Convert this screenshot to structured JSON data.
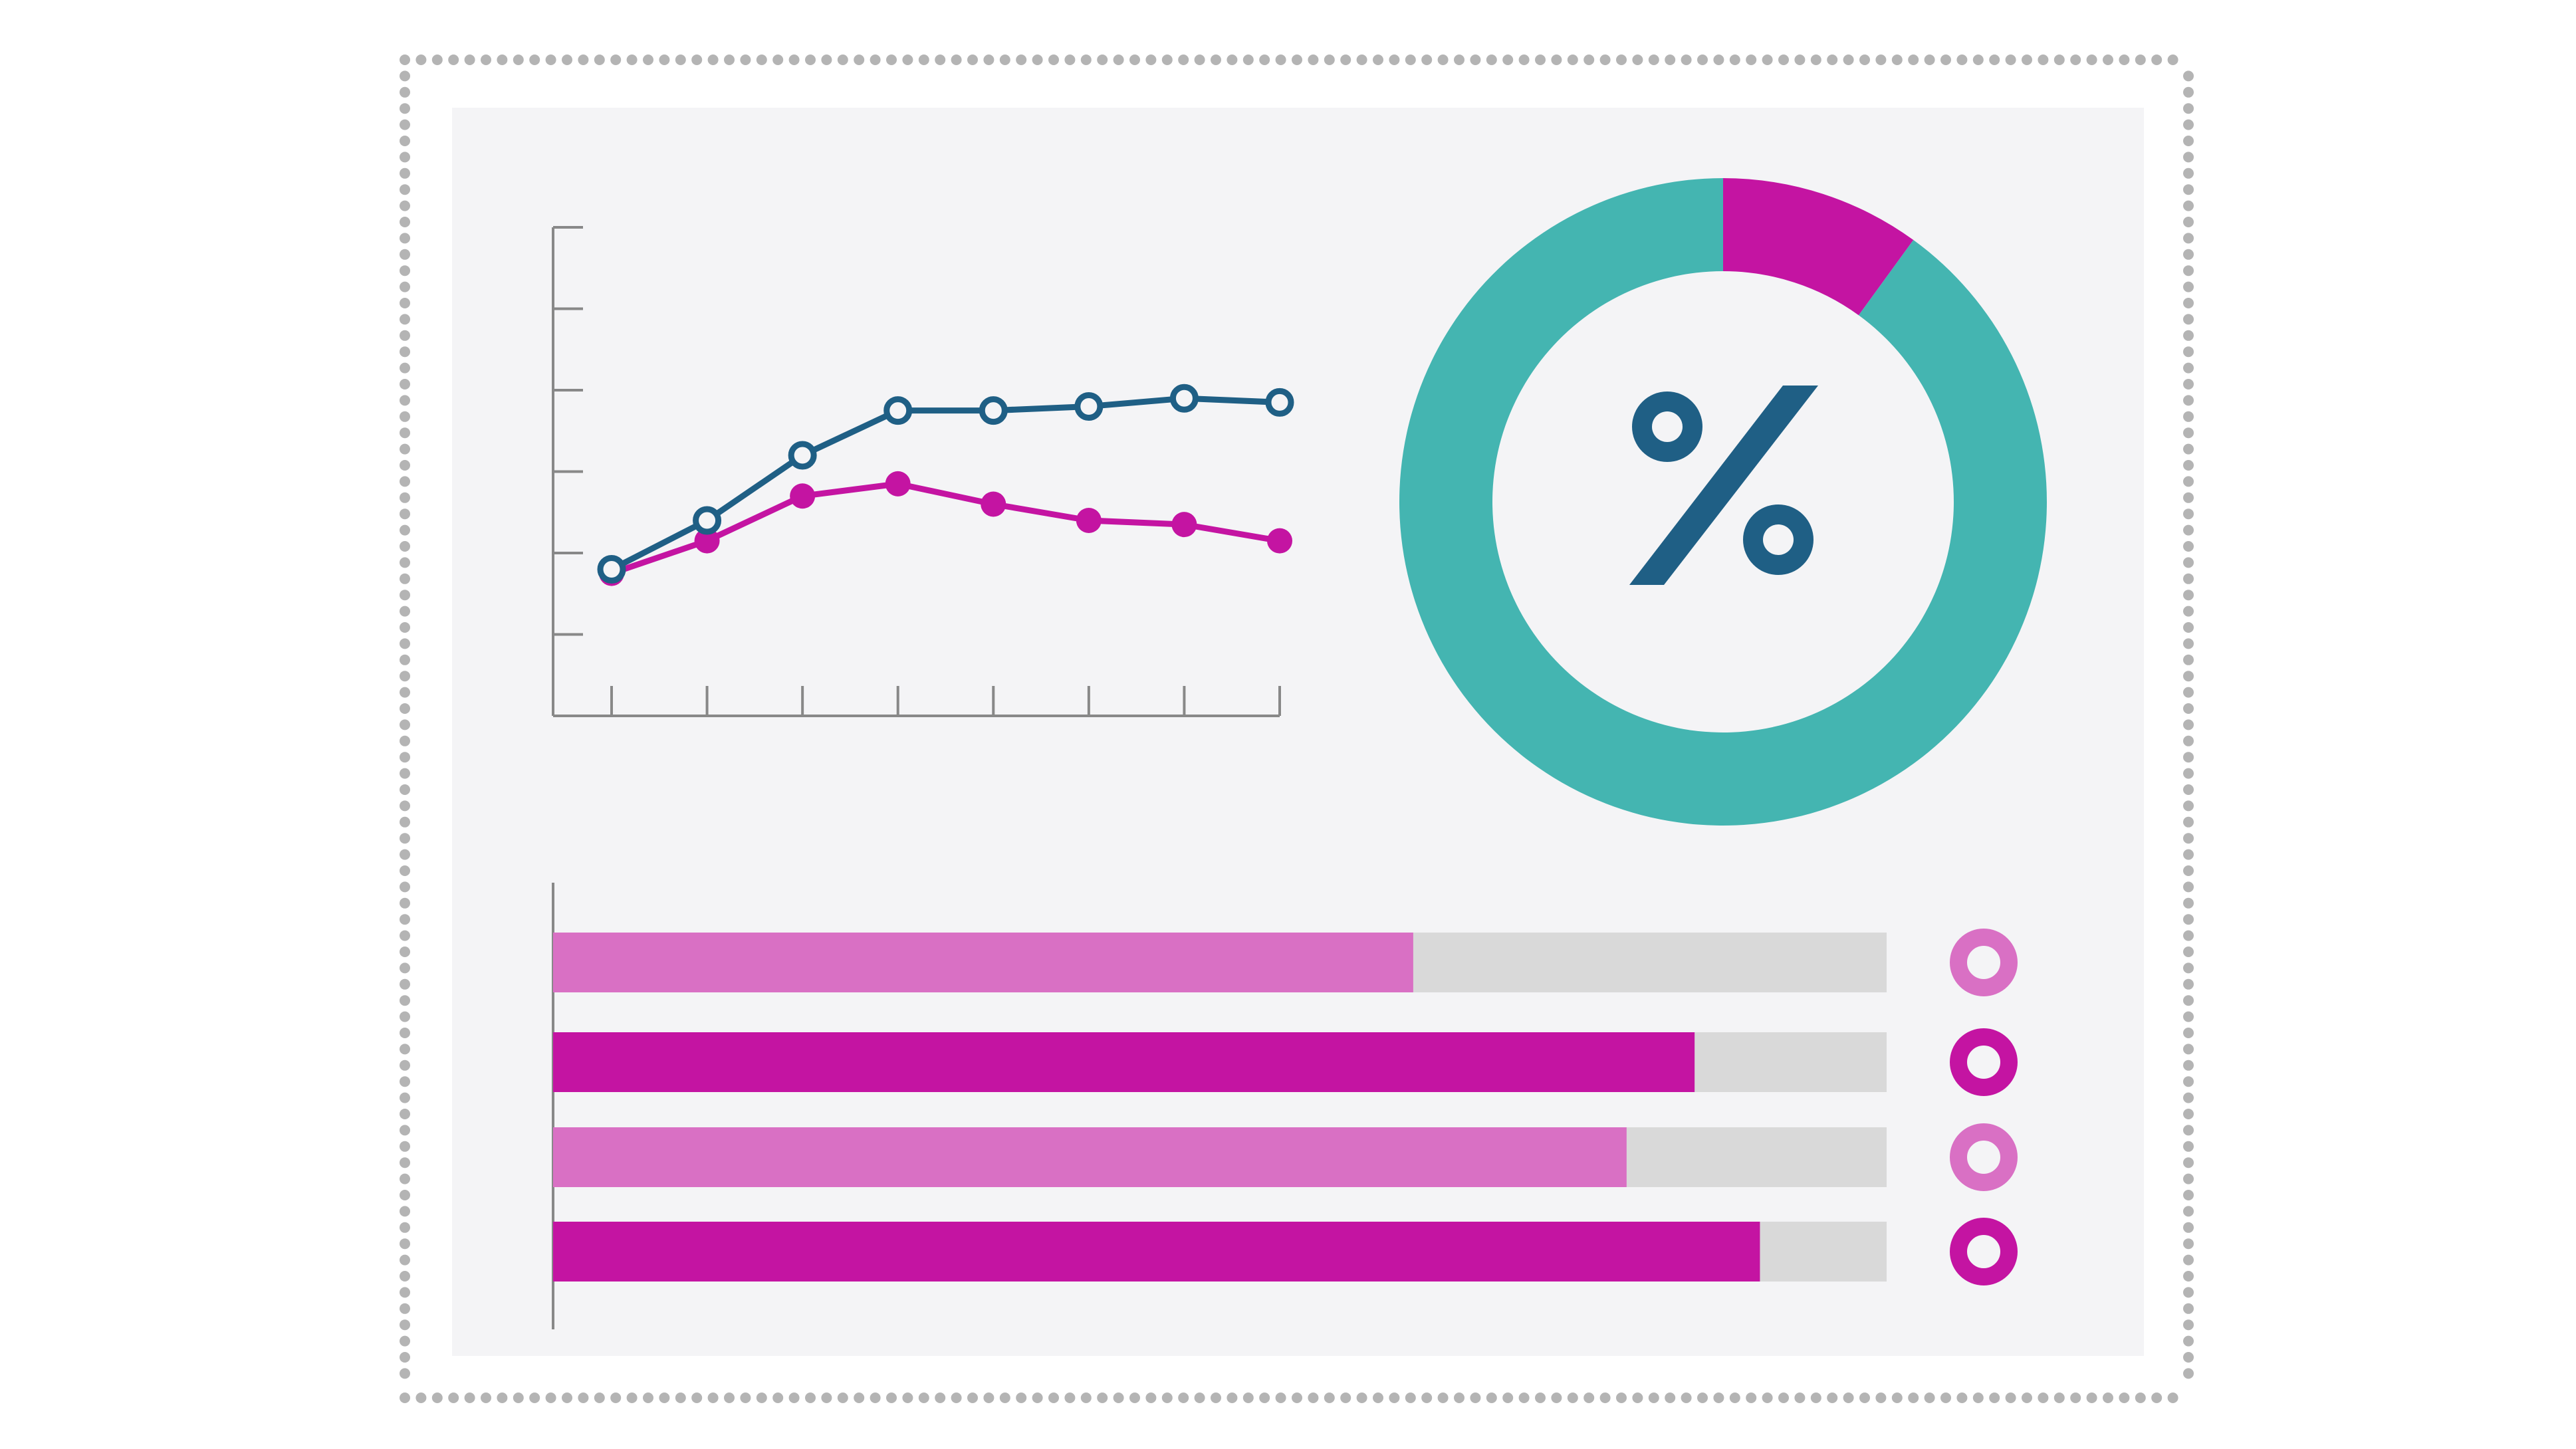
{
  "colors": {
    "page_background": "#ffffff",
    "panel_background": "#f4f4f6",
    "frame_dots": "#b4b4b4",
    "axis": "#888888",
    "navy": "#1f5f85",
    "magenta": "#c414a2",
    "light_magenta": "#d970c4",
    "teal": "#44b5b1",
    "track_gray": "#d9d9d9"
  },
  "icons": {
    "percent_symbol": "percent-icon",
    "legend_markers": "ring-marker-icon"
  },
  "chart_data": [
    {
      "type": "line",
      "title": "",
      "xlabel": "",
      "ylabel": "",
      "x": [
        1,
        2,
        3,
        4,
        5,
        6,
        7,
        8
      ],
      "ylim": [
        0,
        6
      ],
      "y_ticks": [
        1,
        2,
        3,
        4,
        5,
        6
      ],
      "grid": false,
      "series": [
        {
          "color": "#1f5f85",
          "marker": "hollow",
          "values": [
            1.8,
            2.4,
            3.2,
            3.75,
            3.75,
            3.8,
            3.9,
            3.85
          ]
        },
        {
          "color": "#c414a2",
          "marker": "filled",
          "values": [
            1.75,
            2.15,
            2.7,
            2.85,
            2.6,
            2.4,
            2.35,
            2.15
          ]
        }
      ]
    },
    {
      "type": "pie",
      "style": "donut",
      "title": "",
      "center_symbol": "%",
      "slices": [
        {
          "color": "#c414a2",
          "value": 0.1
        },
        {
          "color": "#44b5b1",
          "value": 0.9
        }
      ]
    },
    {
      "type": "bar",
      "orientation": "horizontal",
      "title": "",
      "xlim": [
        0,
        1
      ],
      "bars": [
        {
          "value": 0.645,
          "color": "#d970c4",
          "track_color": "#d9d9d9",
          "marker_color": "#d970c4"
        },
        {
          "value": 0.856,
          "color": "#c414a2",
          "track_color": "#d9d9d9",
          "marker_color": "#c414a2"
        },
        {
          "value": 0.805,
          "color": "#d970c4",
          "track_color": "#d9d9d9",
          "marker_color": "#d970c4"
        },
        {
          "value": 0.905,
          "color": "#c414a2",
          "track_color": "#d9d9d9",
          "marker_color": "#c414a2"
        }
      ]
    }
  ]
}
